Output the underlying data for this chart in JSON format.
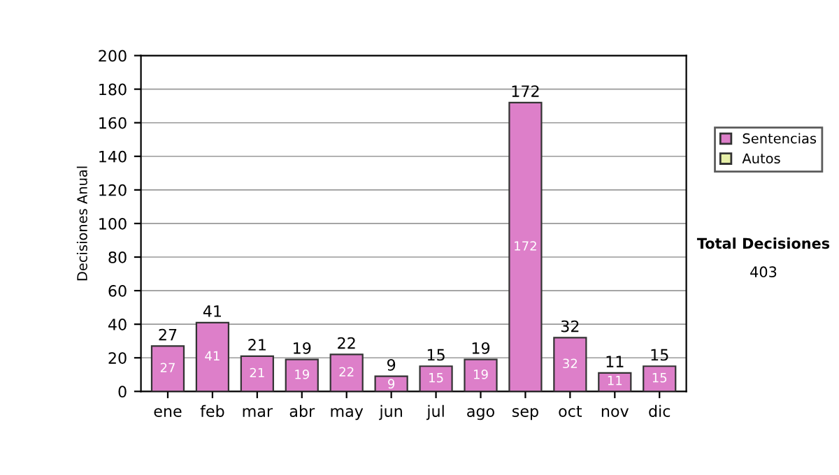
{
  "chart_data": {
    "type": "bar",
    "ylabel": "Decisiones Anual",
    "categories": [
      "ene",
      "feb",
      "mar",
      "abr",
      "may",
      "jun",
      "jul",
      "ago",
      "sep",
      "oct",
      "nov",
      "dic"
    ],
    "series": [
      {
        "name": "Sentencias",
        "color": "#dd7fc9",
        "values": [
          27,
          41,
          21,
          19,
          22,
          9,
          15,
          19,
          172,
          32,
          11,
          15
        ],
        "value_labels": [
          "27",
          "41",
          "21",
          "19",
          "22",
          "9",
          "15",
          "19",
          "172",
          "32",
          "11",
          "15"
        ]
      },
      {
        "name": "Autos",
        "color": "#e6efa8",
        "values": [
          null,
          null,
          null,
          null,
          null,
          null,
          null,
          null,
          null,
          null,
          null,
          null
        ]
      }
    ],
    "stacked": true,
    "totals": [
      "27",
      "41",
      "21",
      "19",
      "22",
      "9",
      "15",
      "19",
      "172",
      "32",
      "11",
      "15"
    ],
    "ylim": [
      0,
      200
    ],
    "yticks": [
      0,
      20,
      40,
      60,
      80,
      100,
      120,
      140,
      160,
      180,
      200
    ],
    "grid": "y",
    "legend": "right",
    "annotations": [
      "Total Decisiones",
      "403"
    ]
  }
}
